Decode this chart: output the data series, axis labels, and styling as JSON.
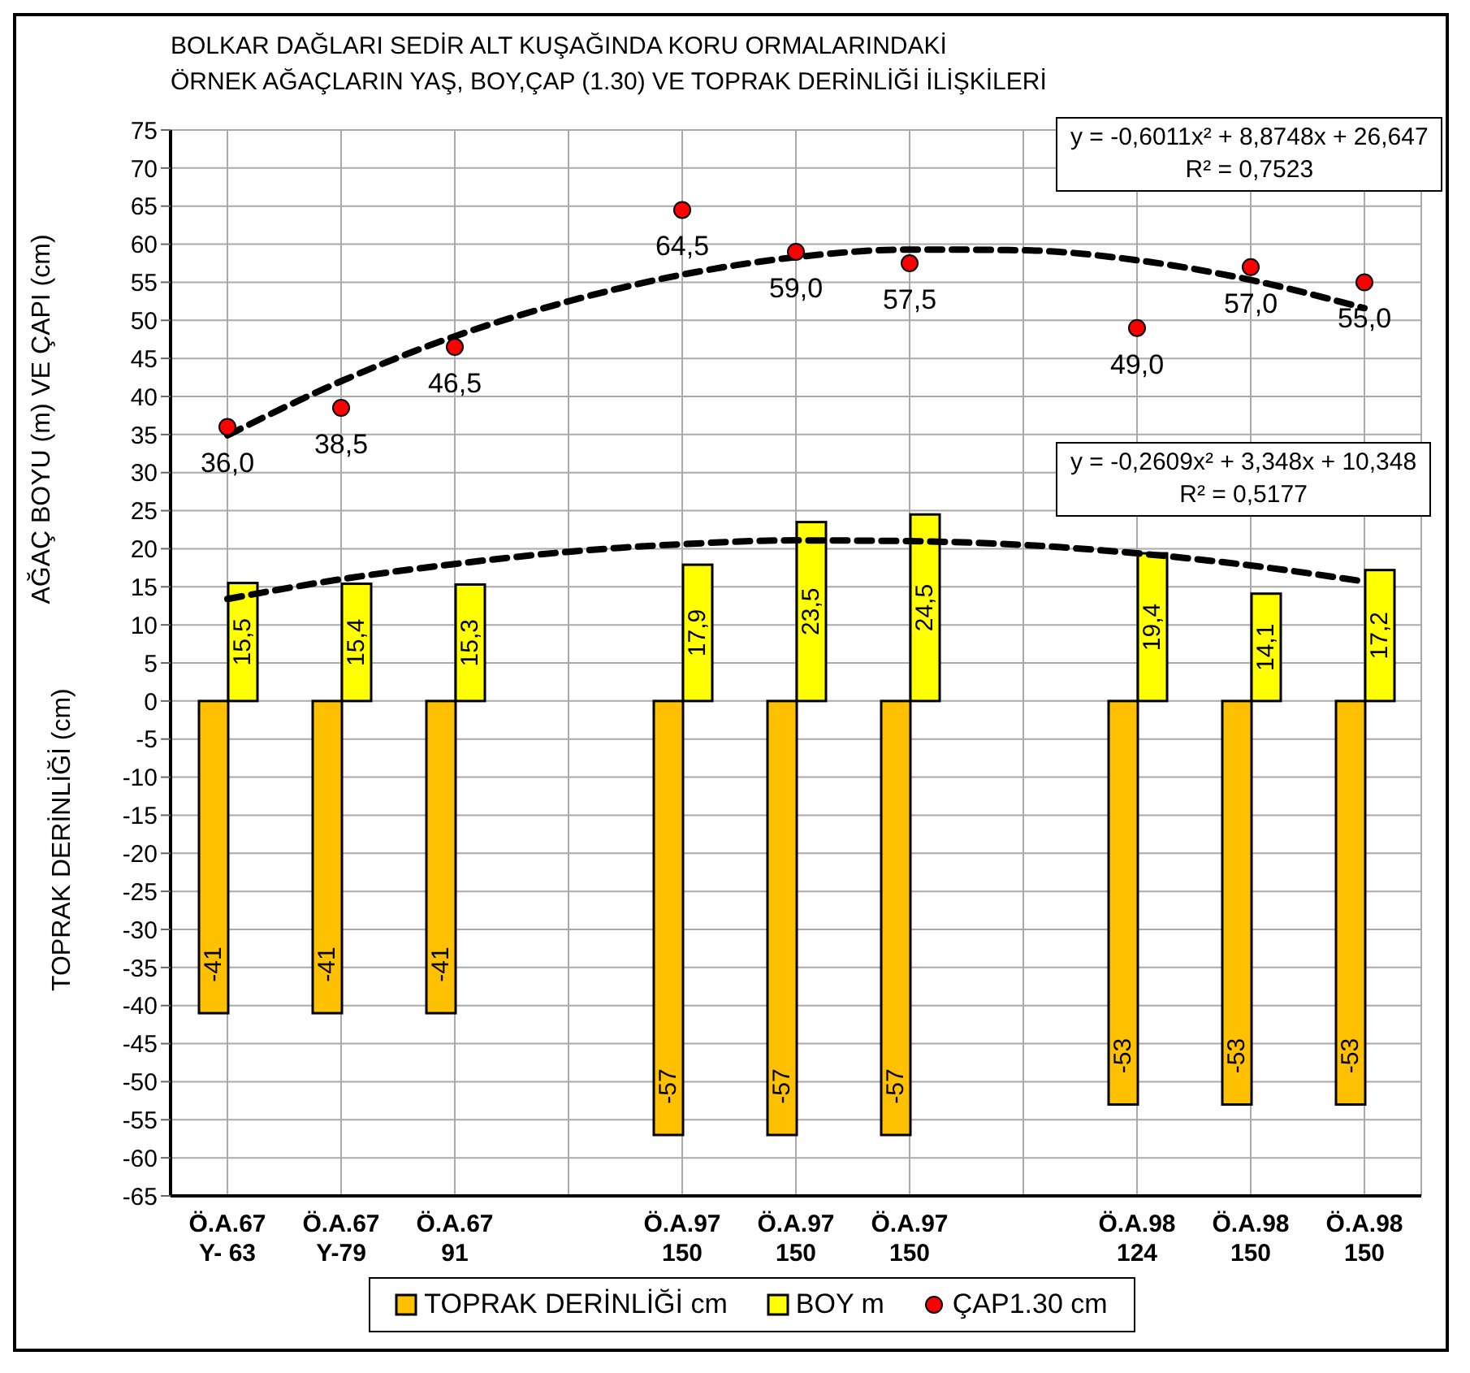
{
  "chart_data": {
    "type": "bar",
    "title": "BOLKAR DAĞLARI SEDİR ALT KUŞAĞINDA KORU ORMALARINDAKİ\nÖRNEK AĞAÇLARIN YAŞ, BOY,ÇAP (1.30) VE TOPRAK DERİNLİĞİ İLİŞKİLERİ",
    "ylabel": "AĞAÇ BOYU  (m) VE ÇAPI (cm)",
    "annotations": [
      "TOPRAK DERİNLİĞİ (cm)",
      "y = -0,6011x² + 8,8748x + 26,647\nR² = 0,7523",
      "y = -0,2609x² + 3,348x + 10,348\nR² = 0,5177"
    ],
    "categories": [
      "Ö.A.67\nY- 63",
      "Ö.A.67\nY-79",
      "Ö.A.67\n91",
      null,
      "Ö.A.97\n150",
      "Ö.A.97\n150",
      "Ö.A.97\n150",
      null,
      "Ö.A.98\n124",
      "Ö.A.98\n150",
      "Ö.A.98\n150"
    ],
    "series": [
      {
        "name": "TOPRAK DERİNLİĞİ cm",
        "color": "#ffc000",
        "values": [
          -41,
          -41,
          -41,
          null,
          -57,
          -57,
          -57,
          null,
          -53,
          -53,
          -53
        ],
        "value_labels": [
          "-41",
          "-41",
          "-41",
          null,
          "-57",
          "-57",
          "-57",
          null,
          "-53",
          "-53",
          "-53"
        ]
      },
      {
        "name": "BOY m",
        "color": "#ffff00",
        "values": [
          15.5,
          15.4,
          15.3,
          null,
          17.9,
          23.5,
          24.5,
          null,
          19.4,
          14.1,
          17.2
        ],
        "value_labels": [
          "15,5",
          "15,4",
          "15,3",
          null,
          "17,9",
          "23,5",
          "24,5",
          null,
          "19,4",
          "14,1",
          "17,2"
        ]
      },
      {
        "name": "ÇAP1.30 cm",
        "type": "scatter",
        "color": "#ff0000",
        "marker": "circle",
        "values": [
          36.0,
          38.5,
          46.5,
          null,
          64.5,
          59.0,
          57.5,
          null,
          49.0,
          57.0,
          55.0
        ],
        "value_labels": [
          "36,0",
          "38,5",
          "46,5",
          null,
          "64,5",
          "59,0",
          "57,5",
          null,
          "49,0",
          "57,0",
          "55,0"
        ]
      },
      {
        "type": "line",
        "color": "#000000",
        "line_style": "dashed",
        "marker": "none",
        "values": [
          34.9,
          42.0,
          47.9,
          52.5,
          56.0,
          58.3,
          59.3,
          59.2,
          57.9,
          55.3,
          51.6
        ]
      },
      {
        "type": "line",
        "color": "#000000",
        "line_style": "dashed",
        "marker": "none",
        "values": [
          13.4,
          16.0,
          18.0,
          19.6,
          20.6,
          21.1,
          21.0,
          20.5,
          19.4,
          17.8,
          15.7
        ]
      }
    ],
    "ylim": [
      -65,
      75
    ],
    "yticks": [
      -65,
      -60,
      -55,
      -50,
      -45,
      -40,
      -35,
      -30,
      -25,
      -20,
      -15,
      -10,
      -5,
      0,
      5,
      10,
      15,
      20,
      25,
      30,
      35,
      40,
      45,
      50,
      55,
      60,
      65,
      70,
      75
    ],
    "grid": true,
    "legend": "bottom"
  }
}
